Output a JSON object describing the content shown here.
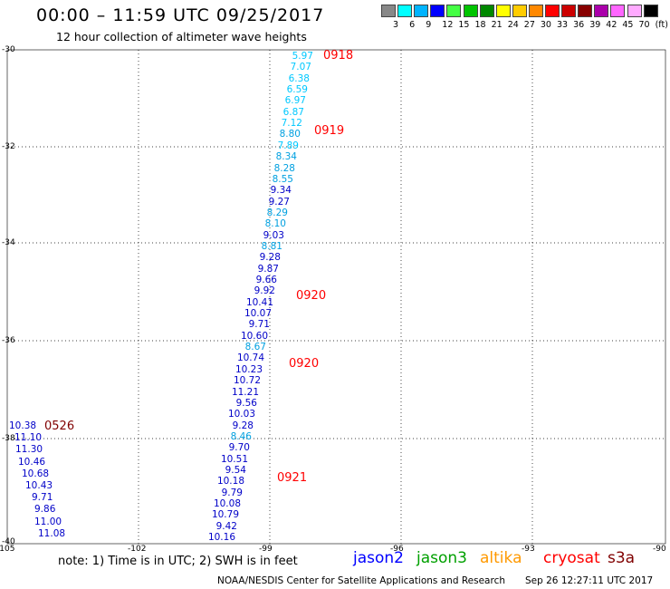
{
  "title": "00:00 – 11:59 UTC 09/25/2017",
  "subtitle": "12 hour collection of altimeter wave heights",
  "legend": {
    "colors": [
      "#888888",
      "#00ffff",
      "#00b4ff",
      "#0000ff",
      "#44ff44",
      "#00c400",
      "#008800",
      "#ffff00",
      "#ffcc00",
      "#ff8800",
      "#ff0000",
      "#cc0000",
      "#880000",
      "#aa00aa",
      "#ff66ff",
      "#ffaaff",
      "#000000"
    ],
    "labels": [
      "3",
      "6",
      "9",
      "12",
      "15",
      "18",
      "21",
      "24",
      "27",
      "30",
      "33",
      "36",
      "39",
      "42",
      "45",
      "70",
      "(ft)"
    ]
  },
  "axes": {
    "y_labels": [
      "-30",
      "-32",
      "-34",
      "-36",
      "-38",
      "-40"
    ],
    "x_labels": [
      "-105",
      "-102",
      "-99",
      "-96",
      "-93",
      "-90"
    ]
  },
  "readings": [
    {
      "v": "5.97",
      "c": "#00c8ff"
    },
    {
      "v": "7.07",
      "c": "#00c8ff"
    },
    {
      "v": "6.38",
      "c": "#00c8ff"
    },
    {
      "v": "6.59",
      "c": "#00c8ff"
    },
    {
      "v": "6.97",
      "c": "#00c8ff"
    },
    {
      "v": "6.87",
      "c": "#00c8ff"
    },
    {
      "v": "7.12",
      "c": "#00c8ff"
    },
    {
      "v": "8.80",
      "c": "#00a0e0"
    },
    {
      "v": "7.89",
      "c": "#00c8ff"
    },
    {
      "v": "8.34",
      "c": "#00a0e0"
    },
    {
      "v": "8.28",
      "c": "#00a0e0"
    },
    {
      "v": "8.55",
      "c": "#00a0e0"
    },
    {
      "v": "9.34",
      "c": "#0000c8"
    },
    {
      "v": "9.27",
      "c": "#0000c8"
    },
    {
      "v": "8.29",
      "c": "#00a0e0"
    },
    {
      "v": "8.10",
      "c": "#00a0e0"
    },
    {
      "v": "9.03",
      "c": "#0000c8"
    },
    {
      "v": "8.81",
      "c": "#00a0e0"
    },
    {
      "v": "9.28",
      "c": "#0000c8"
    },
    {
      "v": "9.87",
      "c": "#0000c8"
    },
    {
      "v": "9.66",
      "c": "#0000c8"
    },
    {
      "v": "9.92",
      "c": "#0000c8"
    },
    {
      "v": "10.41",
      "c": "#0000c8"
    },
    {
      "v": "10.07",
      "c": "#0000c8"
    },
    {
      "v": "9.71",
      "c": "#0000c8"
    },
    {
      "v": "10.60",
      "c": "#0000c8"
    },
    {
      "v": "8.67",
      "c": "#00a0e0"
    },
    {
      "v": "10.74",
      "c": "#0000c8"
    },
    {
      "v": "10.23",
      "c": "#0000c8"
    },
    {
      "v": "10.72",
      "c": "#0000c8"
    },
    {
      "v": "11.21",
      "c": "#0000c8"
    },
    {
      "v": "9.56",
      "c": "#0000c8"
    },
    {
      "v": "10.03",
      "c": "#0000c8"
    },
    {
      "v": "9.28",
      "c": "#0000c8"
    },
    {
      "v": "8.46",
      "c": "#00a0e0"
    },
    {
      "v": "9.70",
      "c": "#0000c8"
    },
    {
      "v": "10.51",
      "c": "#0000c8"
    },
    {
      "v": "9.54",
      "c": "#0000c8"
    },
    {
      "v": "10.18",
      "c": "#0000c8"
    },
    {
      "v": "9.79",
      "c": "#0000c8"
    },
    {
      "v": "10.08",
      "c": "#0000c8"
    },
    {
      "v": "10.79",
      "c": "#0000c8"
    },
    {
      "v": "9.42",
      "c": "#0000c8"
    },
    {
      "v": "10.16",
      "c": "#0000c8"
    }
  ],
  "left_readings": [
    {
      "v": "10.38",
      "c": "#0000c8"
    },
    {
      "v": "11.10",
      "c": "#0000c8"
    },
    {
      "v": "11.30",
      "c": "#0000c8"
    },
    {
      "v": "10.46",
      "c": "#0000c8"
    },
    {
      "v": "10.68",
      "c": "#0000c8"
    },
    {
      "v": "10.43",
      "c": "#0000c8"
    },
    {
      "v": "9.71",
      "c": "#0000c8"
    },
    {
      "v": "9.86",
      "c": "#0000c8"
    },
    {
      "v": "11.00",
      "c": "#0000c8"
    },
    {
      "v": "11.08",
      "c": "#0000c8"
    }
  ],
  "time_labels": [
    {
      "t": "0918",
      "c": "#ff0000"
    },
    {
      "t": "0919",
      "c": "#ff0000"
    },
    {
      "t": "0920",
      "c": "#ff0000"
    },
    {
      "t": "0920",
      "c": "#ff0000"
    },
    {
      "t": "0921",
      "c": "#ff0000"
    },
    {
      "t": "0526",
      "c": "#800000"
    }
  ],
  "note": "note: 1) Time is in UTC; 2) SWH is in feet",
  "satellites": [
    {
      "name": "jason2",
      "c": "#0000ff"
    },
    {
      "name": "jason3",
      "c": "#00a000"
    },
    {
      "name": "altika",
      "c": "#ff9900"
    },
    {
      "name": "cryosat",
      "c": "#ff0000"
    },
    {
      "name": "s3a",
      "c": "#800000"
    }
  ],
  "footer_left": "NOAA/NESDIS Center for Satellite Applications and Research",
  "footer_right": "Sep 26 12:27:11 UTC 2017"
}
